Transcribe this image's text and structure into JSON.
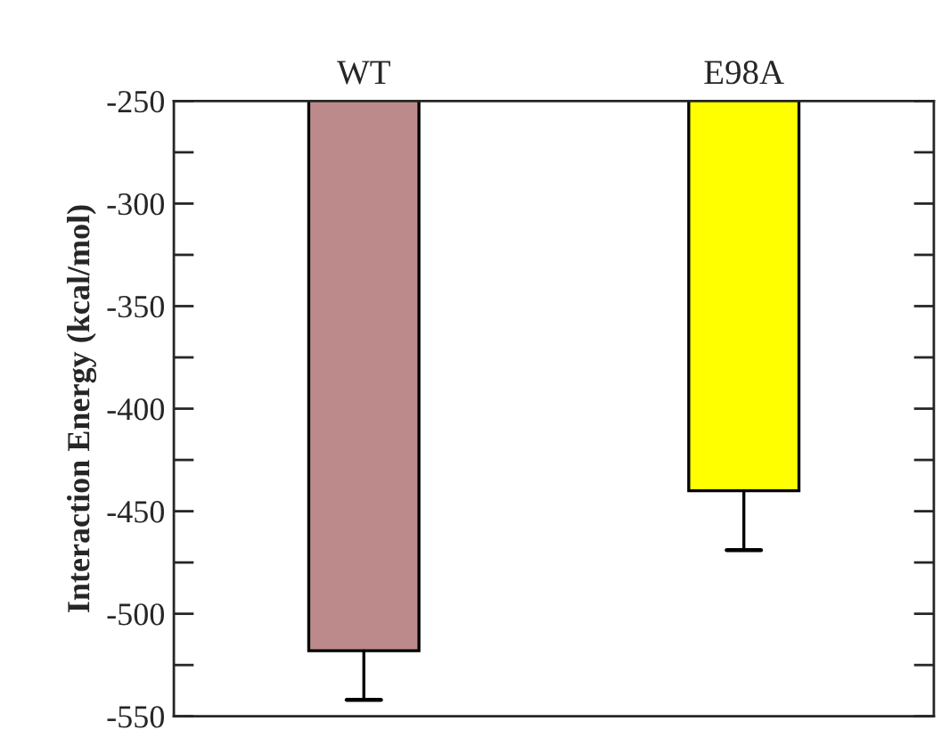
{
  "chart_data": {
    "type": "bar",
    "ylabel": "Interaction Energy (kcal/mol)",
    "categories": [
      "WT",
      "E98A"
    ],
    "values": [
      -518,
      -440
    ],
    "colors": [
      "#bc8a8a",
      "#ffff00"
    ],
    "errors": [
      [
        -542,
        -518
      ],
      [
        -469,
        -440
      ]
    ],
    "ylim": [
      -550,
      -250
    ],
    "yticks": [
      -550,
      {
        "value": -525,
        "label": null
      },
      -500,
      {
        "value": -475,
        "label": null
      },
      -450,
      {
        "value": -425,
        "label": null
      },
      -400,
      {
        "value": -375,
        "label": null
      },
      -350,
      {
        "value": -325,
        "label": null
      },
      -300,
      {
        "value": -275,
        "label": null
      },
      -250
    ],
    "grid": false,
    "legend": false
  }
}
